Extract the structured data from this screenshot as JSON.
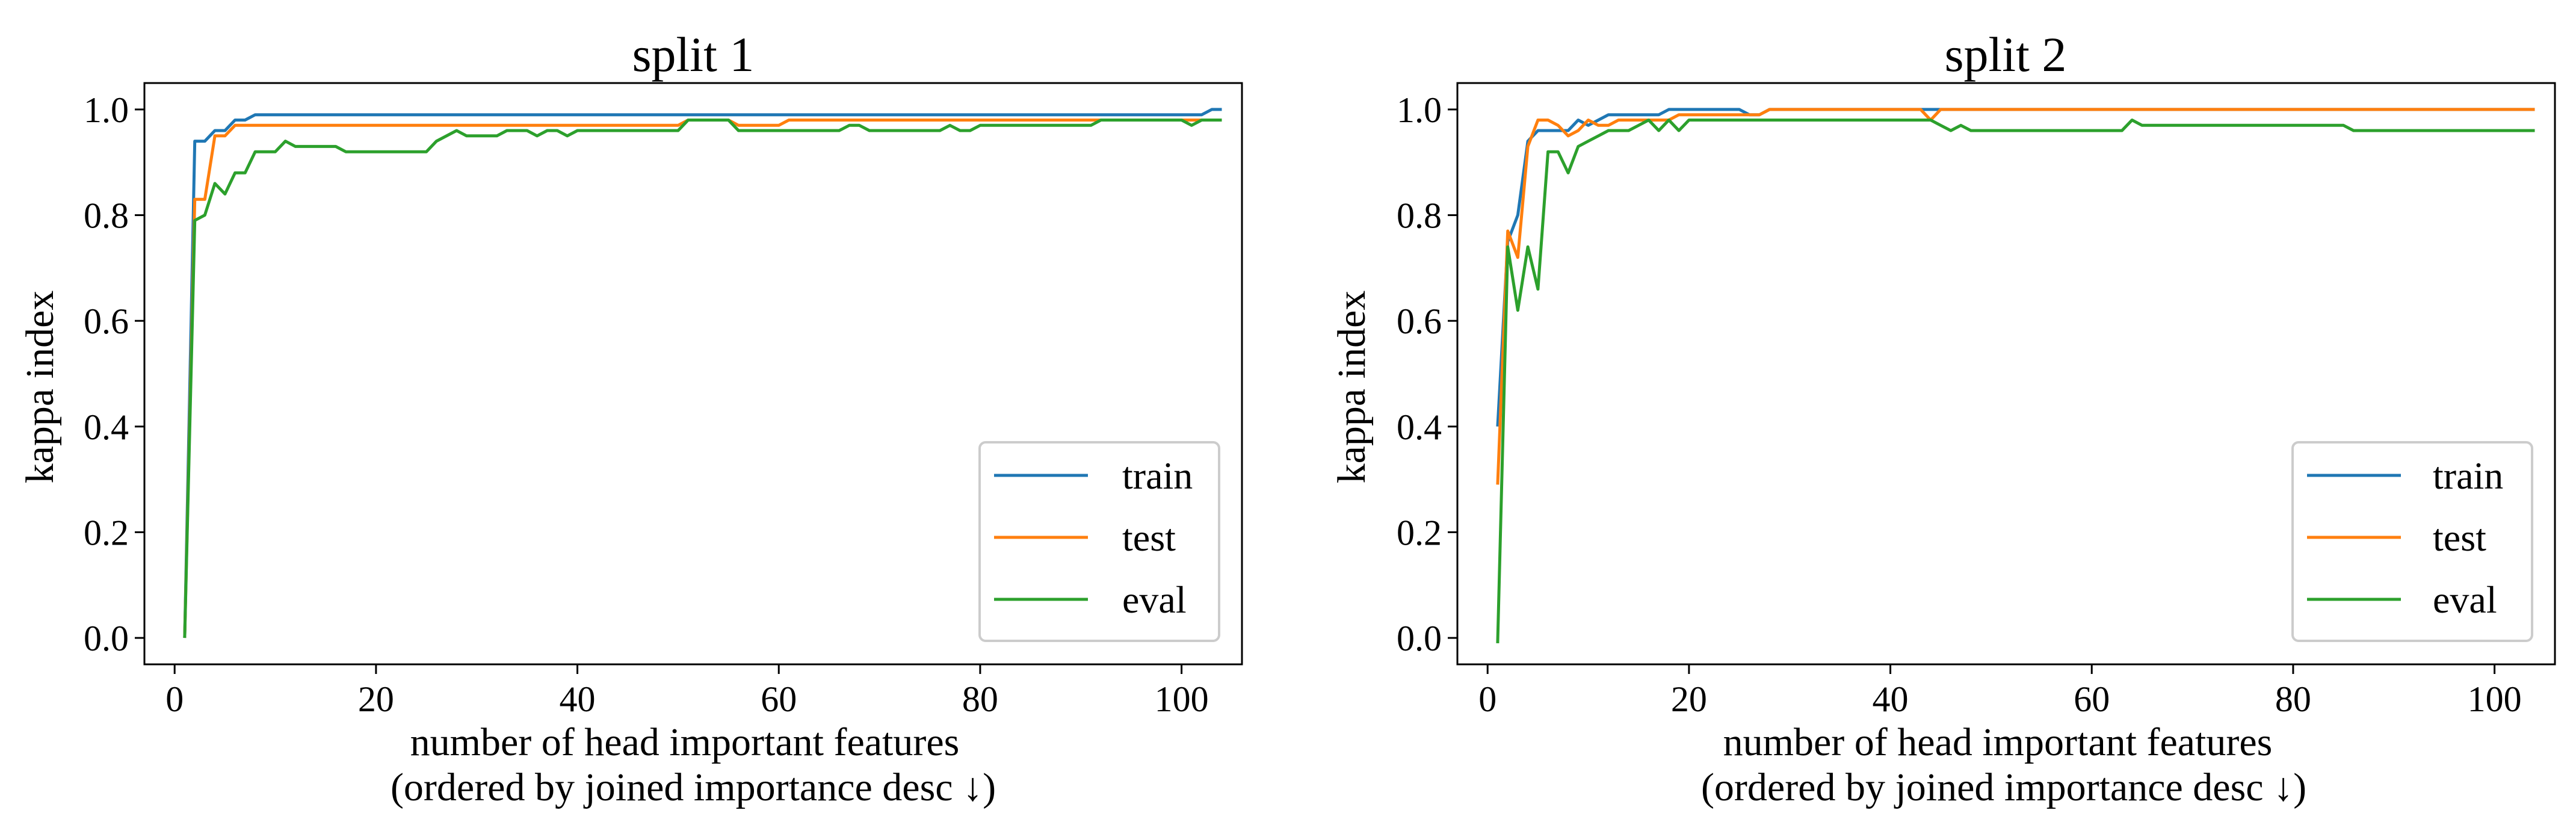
{
  "figure": {
    "x_range": [
      -3,
      106
    ],
    "y_range": [
      -0.05,
      1.05
    ],
    "x_ticks": [
      0,
      20,
      40,
      60,
      80,
      100
    ],
    "y_ticks": [
      0.0,
      0.2,
      0.4,
      0.6,
      0.8,
      1.0
    ]
  },
  "chart_data": [
    {
      "type": "line",
      "title": "split 1",
      "xlabel": "number of head important features",
      "xlabel_sub": "(ordered by joined importance desc ↓)",
      "ylabel": "kappa index",
      "xlim": [
        -3,
        106
      ],
      "ylim": [
        -0.05,
        1.05
      ],
      "x_tick_labels": [
        "0",
        "20",
        "40",
        "60",
        "80",
        "100"
      ],
      "y_tick_labels": [
        "0.0",
        "0.2",
        "0.4",
        "0.6",
        "0.8",
        "1.0"
      ],
      "legend_position": "lower-right",
      "series": [
        {
          "name": "train",
          "color": "#1f77b4",
          "points": [
            [
              1,
              0
            ],
            [
              2,
              0.94
            ],
            [
              3,
              0.94
            ],
            [
              4,
              0.96
            ],
            [
              5,
              0.96
            ],
            [
              6,
              0.98
            ],
            [
              7,
              0.98
            ],
            [
              8,
              0.99
            ],
            [
              20,
              0.99
            ],
            [
              40,
              0.99
            ],
            [
              60,
              0.99
            ],
            [
              80,
              0.99
            ],
            [
              100,
              0.99
            ],
            [
              102,
              0.99
            ],
            [
              103,
              1.0
            ],
            [
              104,
              1.0
            ]
          ]
        },
        {
          "name": "test",
          "color": "#ff7f0e",
          "points": [
            [
              1,
              0
            ],
            [
              2,
              0.83
            ],
            [
              3,
              0.83
            ],
            [
              4,
              0.95
            ],
            [
              5,
              0.95
            ],
            [
              6,
              0.97
            ],
            [
              20,
              0.97
            ],
            [
              40,
              0.97
            ],
            [
              50,
              0.97
            ],
            [
              51,
              0.98
            ],
            [
              55,
              0.98
            ],
            [
              56,
              0.97
            ],
            [
              60,
              0.97
            ],
            [
              61,
              0.98
            ],
            [
              80,
              0.98
            ],
            [
              100,
              0.98
            ],
            [
              104,
              0.98
            ]
          ]
        },
        {
          "name": "eval",
          "color": "#2ca02c",
          "points": [
            [
              1,
              0
            ],
            [
              2,
              0.79
            ],
            [
              3,
              0.8
            ],
            [
              4,
              0.86
            ],
            [
              5,
              0.84
            ],
            [
              6,
              0.88
            ],
            [
              7,
              0.88
            ],
            [
              8,
              0.92
            ],
            [
              9,
              0.92
            ],
            [
              10,
              0.92
            ],
            [
              11,
              0.94
            ],
            [
              12,
              0.93
            ],
            [
              16,
              0.93
            ],
            [
              17,
              0.92
            ],
            [
              25,
              0.92
            ],
            [
              26,
              0.94
            ],
            [
              28,
              0.96
            ],
            [
              29,
              0.95
            ],
            [
              32,
              0.95
            ],
            [
              33,
              0.96
            ],
            [
              35,
              0.96
            ],
            [
              36,
              0.95
            ],
            [
              37,
              0.96
            ],
            [
              38,
              0.96
            ],
            [
              39,
              0.95
            ],
            [
              40,
              0.96
            ],
            [
              50,
              0.96
            ],
            [
              51,
              0.98
            ],
            [
              55,
              0.98
            ],
            [
              56,
              0.96
            ],
            [
              60,
              0.96
            ],
            [
              66,
              0.96
            ],
            [
              67,
              0.97
            ],
            [
              68,
              0.97
            ],
            [
              69,
              0.96
            ],
            [
              76,
              0.96
            ],
            [
              77,
              0.97
            ],
            [
              78,
              0.96
            ],
            [
              79,
              0.96
            ],
            [
              80,
              0.97
            ],
            [
              91,
              0.97
            ],
            [
              92,
              0.98
            ],
            [
              100,
              0.98
            ],
            [
              101,
              0.97
            ],
            [
              102,
              0.98
            ],
            [
              104,
              0.98
            ]
          ]
        }
      ]
    },
    {
      "type": "line",
      "title": "split 2",
      "xlabel": "number of head important features",
      "xlabel_sub": "(ordered by joined importance desc ↓)",
      "ylabel": "kappa index",
      "xlim": [
        -3,
        106
      ],
      "ylim": [
        -0.05,
        1.05
      ],
      "x_tick_labels": [
        "0",
        "20",
        "40",
        "60",
        "80",
        "100"
      ],
      "y_tick_labels": [
        "0.0",
        "0.2",
        "0.4",
        "0.6",
        "0.8",
        "1.0"
      ],
      "legend_position": "lower-right",
      "series": [
        {
          "name": "train",
          "color": "#1f77b4",
          "points": [
            [
              1,
              0.4
            ],
            [
              2,
              0.75
            ],
            [
              3,
              0.8
            ],
            [
              4,
              0.94
            ],
            [
              5,
              0.96
            ],
            [
              6,
              0.96
            ],
            [
              7,
              0.96
            ],
            [
              8,
              0.96
            ],
            [
              9,
              0.98
            ],
            [
              10,
              0.97
            ],
            [
              11,
              0.98
            ],
            [
              12,
              0.99
            ],
            [
              17,
              0.99
            ],
            [
              18,
              1.0
            ],
            [
              25,
              1.0
            ],
            [
              26,
              0.99
            ],
            [
              27,
              0.99
            ],
            [
              28,
              1.0
            ],
            [
              40,
              1.0
            ],
            [
              60,
              1.0
            ],
            [
              80,
              1.0
            ],
            [
              104,
              1.0
            ]
          ]
        },
        {
          "name": "test",
          "color": "#ff7f0e",
          "points": [
            [
              1,
              0.29
            ],
            [
              2,
              0.77
            ],
            [
              3,
              0.72
            ],
            [
              4,
              0.93
            ],
            [
              5,
              0.98
            ],
            [
              6,
              0.98
            ],
            [
              7,
              0.97
            ],
            [
              8,
              0.95
            ],
            [
              9,
              0.96
            ],
            [
              10,
              0.98
            ],
            [
              11,
              0.97
            ],
            [
              12,
              0.97
            ],
            [
              13,
              0.98
            ],
            [
              18,
              0.98
            ],
            [
              19,
              0.99
            ],
            [
              27,
              0.99
            ],
            [
              28,
              1.0
            ],
            [
              43,
              1.0
            ],
            [
              44,
              0.98
            ],
            [
              45,
              1.0
            ],
            [
              60,
              1.0
            ],
            [
              80,
              1.0
            ],
            [
              104,
              1.0
            ]
          ]
        },
        {
          "name": "eval",
          "color": "#2ca02c",
          "points": [
            [
              1,
              -0.01
            ],
            [
              2,
              0.74
            ],
            [
              3,
              0.62
            ],
            [
              4,
              0.74
            ],
            [
              5,
              0.66
            ],
            [
              6,
              0.92
            ],
            [
              7,
              0.92
            ],
            [
              8,
              0.88
            ],
            [
              9,
              0.93
            ],
            [
              10,
              0.94
            ],
            [
              11,
              0.95
            ],
            [
              12,
              0.96
            ],
            [
              14,
              0.96
            ],
            [
              15,
              0.97
            ],
            [
              16,
              0.98
            ],
            [
              17,
              0.96
            ],
            [
              18,
              0.98
            ],
            [
              19,
              0.96
            ],
            [
              20,
              0.98
            ],
            [
              40,
              0.98
            ],
            [
              44,
              0.98
            ],
            [
              45,
              0.97
            ],
            [
              46,
              0.96
            ],
            [
              47,
              0.97
            ],
            [
              48,
              0.96
            ],
            [
              60,
              0.96
            ],
            [
              63,
              0.96
            ],
            [
              64,
              0.98
            ],
            [
              65,
              0.97
            ],
            [
              80,
              0.97
            ],
            [
              85,
              0.97
            ],
            [
              86,
              0.96
            ],
            [
              100,
              0.96
            ],
            [
              104,
              0.96
            ]
          ]
        }
      ]
    }
  ]
}
